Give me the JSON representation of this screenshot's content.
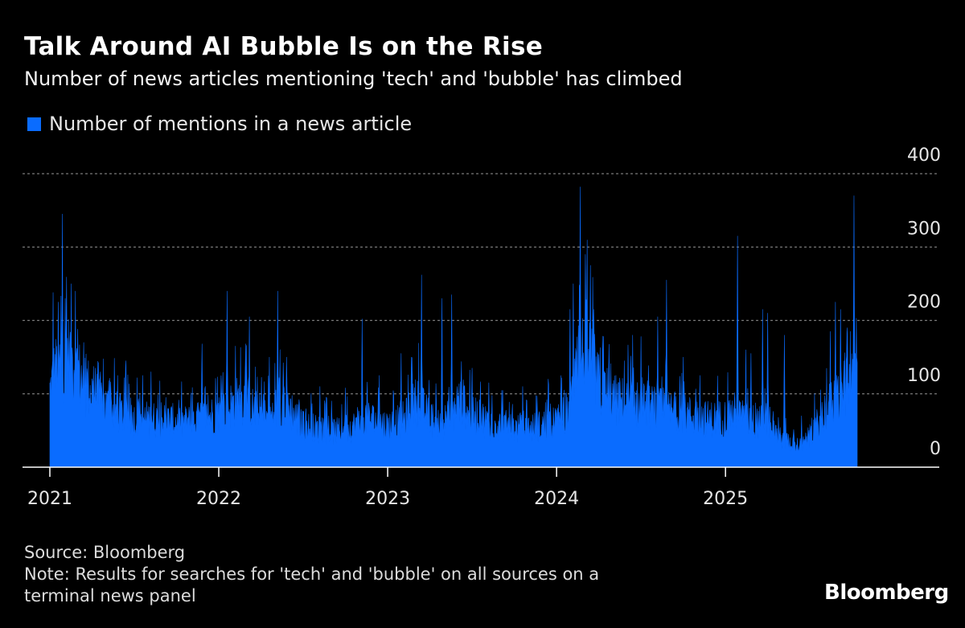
{
  "header": {
    "title": "Talk Around AI Bubble Is on the Rise",
    "subtitle": "Number of news articles mentioning 'tech' and 'bubble' has climbed"
  },
  "legend": {
    "label": "Number of mentions in a news article",
    "color": "#0a6cff"
  },
  "footer": {
    "source": "Source: Bloomberg",
    "note_line1": "Note: Results for searches for 'tech' and 'bubble' on all sources on a",
    "note_line2": "terminal news panel"
  },
  "brand": {
    "name": "Bloomberg"
  },
  "colors": {
    "background": "#000000",
    "series": "#0a6cff",
    "grid": "#7a7a7a",
    "axis": "#ffffff",
    "text": "#e6e6e6"
  },
  "chart_data": {
    "type": "area",
    "title": "Talk Around AI Bubble Is on the Rise",
    "subtitle": "Number of news articles mentioning 'tech' and 'bubble' has climbed",
    "xlabel": "",
    "ylabel": "",
    "x_range": [
      2021.0,
      2025.78
    ],
    "ylim": [
      0,
      400
    ],
    "yticks": [
      0,
      100,
      200,
      300,
      400
    ],
    "xticks": [
      2021,
      2022,
      2023,
      2024,
      2025
    ],
    "xtick_labels": [
      "2021",
      "2022",
      "2023",
      "2024",
      "2025"
    ],
    "grid": true,
    "legend_position": "top-left",
    "series": [
      {
        "name": "Number of mentions in a news article",
        "baseline": [
          [
            2021.0,
            110
          ],
          [
            2021.03,
            140
          ],
          [
            2021.07,
            145
          ],
          [
            2021.1,
            170
          ],
          [
            2021.15,
            145
          ],
          [
            2021.2,
            125
          ],
          [
            2021.25,
            110
          ],
          [
            2021.3,
            95
          ],
          [
            2021.4,
            80
          ],
          [
            2021.5,
            70
          ],
          [
            2021.6,
            70
          ],
          [
            2021.7,
            68
          ],
          [
            2021.8,
            65
          ],
          [
            2021.9,
            70
          ],
          [
            2022.0,
            80
          ],
          [
            2022.1,
            95
          ],
          [
            2022.15,
            100
          ],
          [
            2022.2,
            85
          ],
          [
            2022.3,
            70
          ],
          [
            2022.35,
            90
          ],
          [
            2022.4,
            95
          ],
          [
            2022.45,
            75
          ],
          [
            2022.5,
            60
          ],
          [
            2022.6,
            55
          ],
          [
            2022.7,
            52
          ],
          [
            2022.8,
            60
          ],
          [
            2022.85,
            75
          ],
          [
            2022.9,
            70
          ],
          [
            2023.0,
            60
          ],
          [
            2023.1,
            70
          ],
          [
            2023.18,
            100
          ],
          [
            2023.22,
            80
          ],
          [
            2023.3,
            60
          ],
          [
            2023.38,
            75
          ],
          [
            2023.42,
            100
          ],
          [
            2023.5,
            80
          ],
          [
            2023.6,
            65
          ],
          [
            2023.7,
            60
          ],
          [
            2023.8,
            55
          ],
          [
            2023.9,
            60
          ],
          [
            2024.0,
            65
          ],
          [
            2024.08,
            85
          ],
          [
            2024.13,
            150
          ],
          [
            2024.18,
            180
          ],
          [
            2024.25,
            120
          ],
          [
            2024.3,
            100
          ],
          [
            2024.4,
            95
          ],
          [
            2024.5,
            90
          ],
          [
            2024.6,
            85
          ],
          [
            2024.7,
            80
          ],
          [
            2024.8,
            75
          ],
          [
            2024.9,
            70
          ],
          [
            2025.0,
            72
          ],
          [
            2025.05,
            80
          ],
          [
            2025.1,
            70
          ],
          [
            2025.2,
            65
          ],
          [
            2025.25,
            70
          ],
          [
            2025.3,
            45
          ],
          [
            2025.4,
            35
          ],
          [
            2025.45,
            30
          ],
          [
            2025.5,
            45
          ],
          [
            2025.55,
            65
          ],
          [
            2025.6,
            85
          ],
          [
            2025.65,
            100
          ],
          [
            2025.7,
            110
          ],
          [
            2025.75,
            130
          ],
          [
            2025.78,
            150
          ]
        ],
        "spikes": [
          [
            2021.02,
            238
          ],
          [
            2021.05,
            225
          ],
          [
            2021.075,
            345
          ],
          [
            2021.09,
            230
          ],
          [
            2021.125,
            250
          ],
          [
            2021.15,
            240
          ],
          [
            2021.2,
            170
          ],
          [
            2021.27,
            135
          ],
          [
            2021.3,
            130
          ],
          [
            2021.4,
            125
          ],
          [
            2021.45,
            145
          ],
          [
            2021.55,
            125
          ],
          [
            2021.6,
            130
          ],
          [
            2021.9,
            168
          ],
          [
            2022.05,
            240
          ],
          [
            2022.1,
            165
          ],
          [
            2022.18,
            205
          ],
          [
            2022.3,
            150
          ],
          [
            2022.35,
            240
          ],
          [
            2022.4,
            150
          ],
          [
            2022.6,
            110
          ],
          [
            2022.75,
            108
          ],
          [
            2022.85,
            202
          ],
          [
            2022.95,
            125
          ],
          [
            2023.08,
            155
          ],
          [
            2023.14,
            150
          ],
          [
            2023.2,
            262
          ],
          [
            2023.32,
            230
          ],
          [
            2023.38,
            235
          ],
          [
            2023.5,
            135
          ],
          [
            2023.6,
            115
          ],
          [
            2023.8,
            110
          ],
          [
            2023.95,
            120
          ],
          [
            2024.08,
            215
          ],
          [
            2024.1,
            250
          ],
          [
            2024.14,
            382
          ],
          [
            2024.17,
            290
          ],
          [
            2024.2,
            275
          ],
          [
            2024.22,
            215
          ],
          [
            2024.3,
            135
          ],
          [
            2024.4,
            145
          ],
          [
            2024.45,
            180
          ],
          [
            2024.5,
            178
          ],
          [
            2024.6,
            205
          ],
          [
            2024.65,
            255
          ],
          [
            2024.75,
            150
          ],
          [
            2024.85,
            125
          ],
          [
            2025.07,
            315
          ],
          [
            2025.12,
            160
          ],
          [
            2025.15,
            155
          ],
          [
            2025.22,
            215
          ],
          [
            2025.25,
            210
          ],
          [
            2025.35,
            180
          ],
          [
            2025.45,
            70
          ],
          [
            2025.62,
            185
          ],
          [
            2025.65,
            225
          ],
          [
            2025.68,
            215
          ],
          [
            2025.7,
            145
          ],
          [
            2025.72,
            190
          ],
          [
            2025.74,
            185
          ],
          [
            2025.76,
            370
          ]
        ]
      }
    ]
  }
}
